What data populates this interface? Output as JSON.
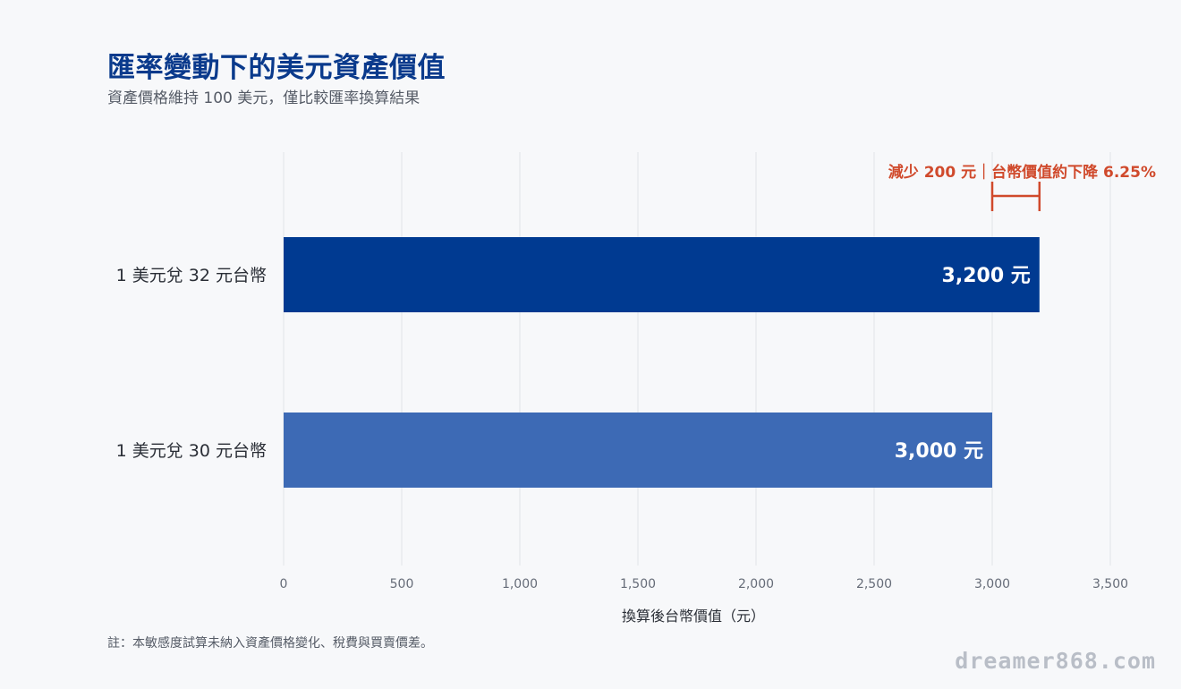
{
  "title": "匯率變動下的美元資產價值",
  "subtitle": "資產價格維持 100 美元，僅比較匯率換算結果",
  "note": "註：本敏感度試算未納入資產價格變化、稅費與買賣價差。",
  "watermark": "dreamer868.com",
  "colors": {
    "bar_32": "#003a91",
    "bar_30": "#3d6ab5",
    "annotation": "#d04a2c",
    "grid": "#e2e4e8"
  },
  "chart_data": {
    "type": "bar",
    "orientation": "horizontal",
    "categories": [
      "1 美元兌 32 元台幣",
      "1 美元兌 30 元台幣"
    ],
    "values": [
      3200,
      3000
    ],
    "value_labels": [
      "3,200 元",
      "3,000 元"
    ],
    "xlabel": "換算後台幣價值（元）",
    "ylabel": "",
    "xlim": [
      0,
      3500
    ],
    "xticks": [
      0,
      500,
      1000,
      1500,
      2000,
      2500,
      3000,
      3500
    ],
    "xtick_labels": [
      "0",
      "500",
      "1,000",
      "1,500",
      "2,000",
      "2,500",
      "3,000",
      "3,500"
    ],
    "grid": true,
    "annotation": {
      "text": "減少 200 元｜台幣價值約下降 6.25%",
      "from": 3000,
      "to": 3200
    }
  }
}
